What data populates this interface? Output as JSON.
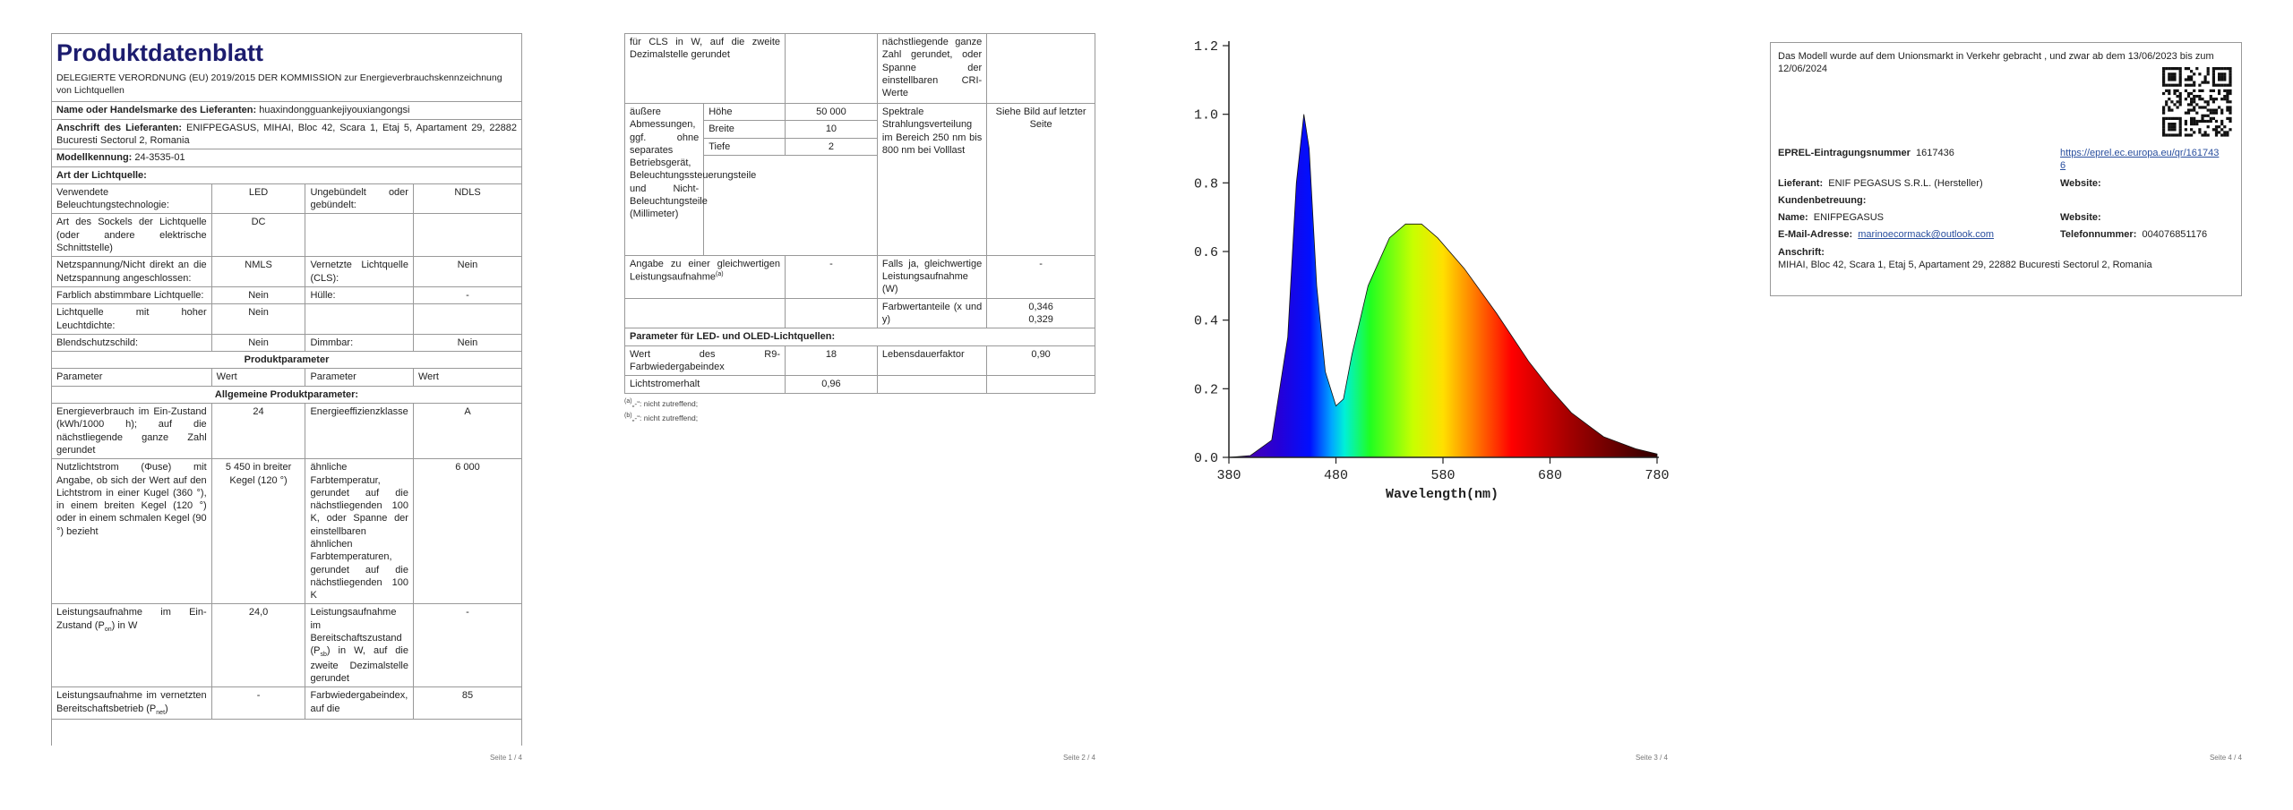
{
  "pages": [
    {
      "title": "Produktdatenblatt",
      "subtitle": "DELEGIERTE VERORDNUNG (EU) 2019/2015 DER KOMMISSION zur Energieverbrauchskennzeichnung von Lichtquellen",
      "supplier_name": {
        "label": "Name oder Handelsmarke des Lieferanten:",
        "value": "huaxindongguankejiyouxiangongsi"
      },
      "supplier_address": {
        "label": "Anschrift des Lieferanten:",
        "value": "ENIFPEGASUS, MIHAI, Bloc 42, Scara 1, Etaj 5, Apartament 29, 22882 Bucuresti Sectorul 2, Romania"
      },
      "model": {
        "label": "Modellkennung:",
        "value": "24-3535-01"
      },
      "light_source_heading": "Art der Lichtquelle:",
      "light_source_rows": [
        [
          "Verwendete Beleuchtungstechnologie:",
          "LED",
          "Ungebündelt oder gebündelt:",
          "NDLS"
        ],
        [
          "Art des Sockels der Lichtquelle (oder andere elektrische Schnittstelle)",
          "DC",
          null,
          null
        ],
        [
          "Netzspannung/Nicht direkt an die Netzspannung angeschlossen:",
          "NMLS",
          "Vernetzte Lichtquelle (CLS):",
          "Nein"
        ],
        [
          "Farblich abstimmbare Lichtquelle:",
          "Nein",
          "Hülle:",
          "-"
        ],
        [
          "Lichtquelle mit hoher Leuchtdichte:",
          "Nein",
          null,
          null
        ],
        [
          "Blendschutzschild:",
          "Nein",
          "Dimmbar:",
          "Nein"
        ]
      ],
      "parameters_heading": "Produktparameter",
      "column_headers": [
        "Parameter",
        "Wert",
        "Parameter",
        "Wert"
      ],
      "general_heading": "Allgemeine Produktparameter:",
      "general_rows": [
        [
          "Energieverbrauch im Ein-Zustand (kWh/1000 h); auf die nächstliegende ganze Zahl gerundet",
          "24",
          "Energieeffizienzklasse",
          "A"
        ],
        [
          "Nutzlichtstrom (Φuse) mit Angabe, ob sich der Wert auf den Lichtstrom in einer Kugel (360 °), in einem breiten Kegel (120 °) oder in einem schmalen Kegel (90 °) bezieht",
          "5 450 in breiter Kegel (120 °)",
          "ähnliche Farbtemperatur, gerundet auf die nächstliegenden 100 K, oder Spanne der einstellbaren ähnlichen Farbtemperaturen, gerundet auf die nächstliegenden 100 K",
          "6 000"
        ],
        [
          {
            "sub": [
              "Leistungsaufnahme im Ein-Zustand (P",
              "on",
              ") in W"
            ]
          },
          "24,0",
          {
            "sub": [
              "Leistungsaufnahme im Bereitschaftszustand (P",
              "sb",
              ") in W, auf die zweite Dezimalstelle gerundet"
            ]
          },
          "-"
        ],
        [
          {
            "sub": [
              "Leistungsaufnahme im vernetzten Bereitschaftsbetrieb (P",
              "net",
              ")"
            ]
          },
          "-",
          "Farbwiedergabeindex, auf die",
          "85"
        ]
      ],
      "footer": "Seite 1 / 4"
    },
    {
      "continued_row": [
        "für CLS in W, auf die zweite Dezimalstelle gerundet",
        null,
        "nächstliegende ganze Zahl gerundet, oder Spanne der einstellbaren CRI-Werte",
        null
      ],
      "dimensions": {
        "label": "äußere Abmessungen, ggf. ohne separates Betriebsgerät, Beleuchtungssteuerungsteile und Nicht-Beleuchtungsteile (Millimeter)",
        "items": [
          [
            "Höhe",
            "50 000"
          ],
          [
            "Breite",
            "10"
          ],
          [
            "Tiefe",
            "2"
          ]
        ],
        "spectrum_label": "Spektrale Strahlungsverteilung im Bereich 250 nm bis 800 nm bei Volllast",
        "spectrum_value": "Siehe Bild auf letzter Seite"
      },
      "rows": [
        [
          {
            "sup": [
              "Angabe zu einer gleichwertigen Leistungsaufnahme",
              "(a)"
            ]
          },
          "-",
          "Falls ja, gleichwertige Leistungsaufnahme (W)",
          "-"
        ],
        [
          null,
          null,
          "Farbwertanteile (x und y)",
          {
            "lines": [
              "0,346",
              "0,329"
            ]
          }
        ]
      ],
      "led_heading": "Parameter für LED- und OLED-Lichtquellen:",
      "led_rows": [
        [
          "Wert des R9-Farbwiedergabeindex",
          "18",
          "Lebensdauerfaktor",
          "0,90"
        ],
        [
          "Lichtstromerhalt",
          "0,96",
          null,
          null
        ]
      ],
      "footnotes": [
        {
          "mark": "(a)",
          "text": "„-“: nicht zutreffend;"
        },
        {
          "mark": "(b)",
          "text": "„-“: nicht zutreffend;"
        }
      ],
      "footer": "Seite 2 / 4"
    },
    {
      "yticks": [
        "1.2",
        "1.0",
        "0.8",
        "0.6",
        "0.4",
        "0.2",
        "0.0"
      ],
      "xticks": [
        "380",
        "480",
        "580",
        "680",
        "780"
      ],
      "xlabel": "Wavelength(nm)",
      "footer": "Seite 3 / 4"
    },
    {
      "intro": "Das Modell wurde auf dem Unionsmarkt in Verkehr gebracht , und zwar ab dem 13/06/2023 bis zum 12/06/2024",
      "eprel": {
        "label": "EPREL-Eintragungsnummer",
        "value": "1617436",
        "link": "https://eprel.ec.europa.eu/qr/1617436"
      },
      "supplier": {
        "label": "Lieferant:",
        "value": "ENIF PEGASUS S.R.L. (Hersteller)"
      },
      "website_label": "Website:",
      "support_heading": "Kundenbetreuung:",
      "support_name": {
        "label": "Name:",
        "value": "ENIFPEGASUS"
      },
      "support_website_label": "Website:",
      "email": {
        "label": "E-Mail-Adresse:",
        "value": "marinoecormack@outlook.com"
      },
      "phone": {
        "label": "Telefonnummer:",
        "value": "004076851176"
      },
      "address": {
        "label": "Anschrift:",
        "value": "MIHAI, Bloc 42, Scara 1, Etaj 5, Apartament 29, 22882 Bucuresti Sectorul 2, Romania"
      },
      "footer": "Seite 4 / 4"
    }
  ]
}
